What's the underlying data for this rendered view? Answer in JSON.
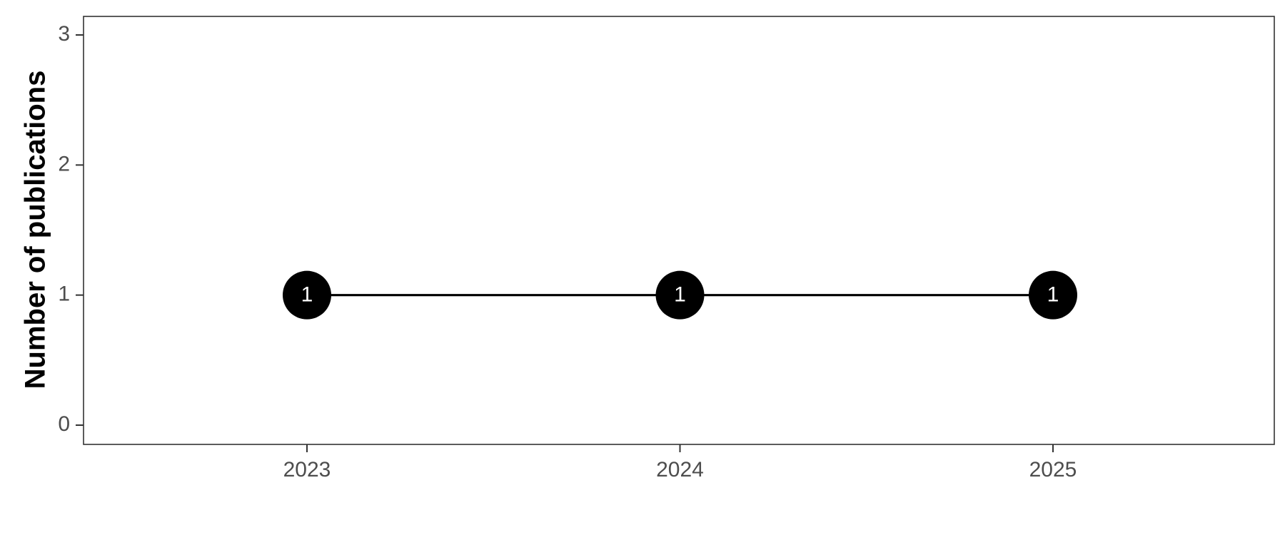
{
  "chart_data": {
    "type": "line",
    "title": "",
    "xlabel": "",
    "ylabel": "Number of publications",
    "categories": [
      "2023",
      "2024",
      "2025"
    ],
    "series": [
      {
        "values": [
          1,
          1,
          1
        ]
      }
    ],
    "data_labels": [
      "1",
      "1",
      "1"
    ],
    "yticks": [
      "0",
      "1",
      "2",
      "3"
    ],
    "ylim": [
      0,
      3
    ],
    "grid": false,
    "legend": "none",
    "colors": {
      "line": "#000000",
      "point_fill": "#000000",
      "point_label": "#ffffff",
      "tick_text": "#4d4d4d",
      "axis_title": "#000000",
      "panel_border": "#333333"
    }
  }
}
